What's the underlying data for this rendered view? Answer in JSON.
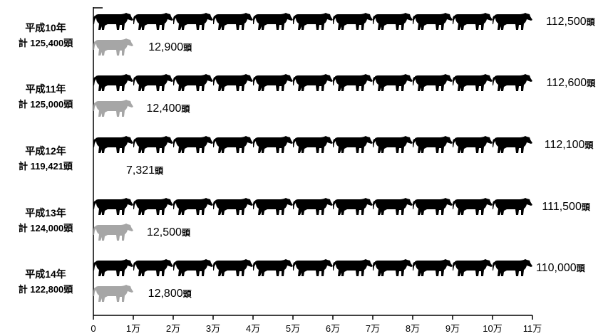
{
  "chart_data": {
    "type": "bar",
    "subtype": "pictograph",
    "icon_unit": 10000,
    "categories": [
      "平成10年",
      "平成11年",
      "平成12年",
      "平成13年",
      "平成14年"
    ],
    "totals": [
      "計 125,400頭",
      "計 125,000頭",
      "計 119,421頭",
      "計 124,000頭",
      "計 122,800頭"
    ],
    "series": [
      {
        "values": [
          112500,
          112600,
          112100,
          111500,
          110000
        ],
        "labels": [
          "112,500頭",
          "112,600頭",
          "112,100頭",
          "111,500頭",
          "110,000頭"
        ],
        "color": "#000000"
      },
      {
        "values": [
          12900,
          12400,
          7321,
          12500,
          12800
        ],
        "labels": [
          "12,900頭",
          "12,400頭",
          "7,321頭",
          "12,500頭",
          "12,800頭"
        ],
        "color": "#a6a6a6"
      }
    ],
    "x_ticks": [
      "0",
      "1万",
      "2万",
      "3万",
      "4万",
      "5万",
      "6万",
      "7万",
      "8万",
      "9万",
      "10万",
      "11万"
    ],
    "xlim": [
      0,
      110000
    ]
  }
}
